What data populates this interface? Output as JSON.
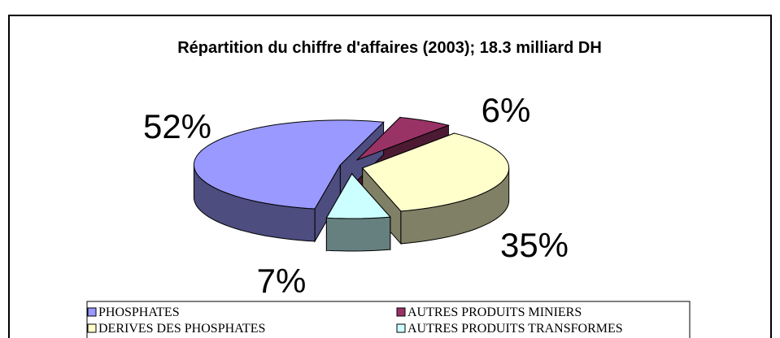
{
  "chart_data": {
    "type": "pie",
    "title": "Répartition du chiffre d'affaires (2003); 18.3 milliard DH",
    "categories": [
      "PHOSPHATES",
      "AUTRES PRODUITS MINIERS",
      "DERIVES DES PHOSPHATES",
      "AUTRES PRODUITS TRANSFORMES"
    ],
    "values": [
      52,
      6,
      35,
      7
    ],
    "value_labels": [
      "52%",
      "6%",
      "35%",
      "7%"
    ],
    "colors": [
      "#9999ff",
      "#993366",
      "#ffffcc",
      "#ccffff"
    ],
    "legend": "bottom"
  }
}
